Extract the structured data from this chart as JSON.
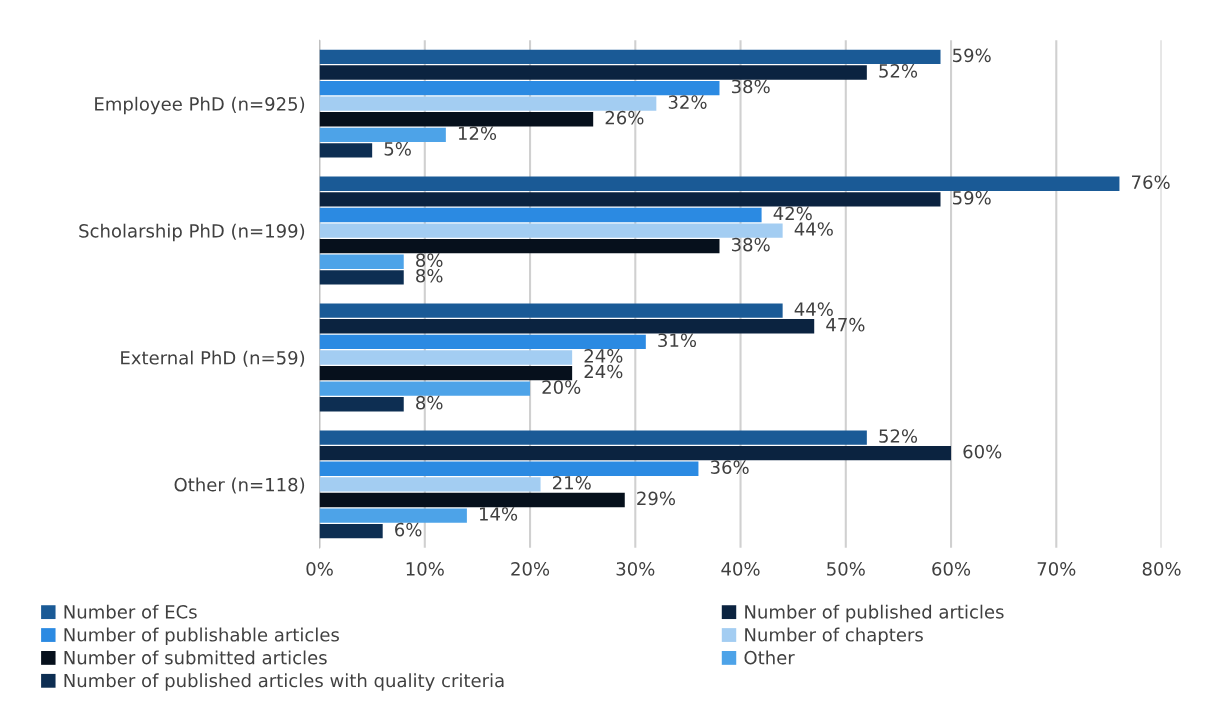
{
  "chart_data": {
    "type": "bar",
    "orientation": "horizontal",
    "categories": [
      "Employee PhD (n=925)",
      "Scholarship PhD (n=199)",
      "External PhD (n=59)",
      "Other (n=118)"
    ],
    "series": [
      {
        "name": "Number of ECs",
        "color": "#1a5a96",
        "values": [
          59,
          76,
          44,
          52
        ],
        "value_labels": [
          "59%",
          "76%",
          "44%",
          "52%"
        ]
      },
      {
        "name": "Number of published articles",
        "color": "#0b2340",
        "values": [
          52,
          59,
          47,
          60
        ],
        "value_labels": [
          "52%",
          "59%",
          "47%",
          "60%"
        ]
      },
      {
        "name": "Number of publishable articles",
        "color": "#2b8ae2",
        "values": [
          38,
          42,
          31,
          36
        ],
        "value_labels": [
          "38%",
          "42%",
          "31%",
          "36%"
        ]
      },
      {
        "name": "Number of chapters",
        "color": "#a3cdf2",
        "values": [
          32,
          44,
          24,
          21
        ],
        "value_labels": [
          "32%",
          "44%",
          "24%",
          "21%"
        ]
      },
      {
        "name": "Number of submitted articles",
        "color": "#06101c",
        "values": [
          26,
          38,
          24,
          29
        ],
        "value_labels": [
          "26%",
          "38%",
          "24%",
          "29%"
        ]
      },
      {
        "name": "Other",
        "color": "#4da3e8",
        "values": [
          12,
          8,
          20,
          14
        ],
        "value_labels": [
          "12%",
          "8%",
          "20%",
          "14%"
        ]
      },
      {
        "name": "Number of published articles with quality criteria",
        "color": "#0d2e52",
        "values": [
          5,
          8,
          8,
          6
        ],
        "value_labels": [
          "5%",
          "8%",
          "8%",
          "6%"
        ]
      }
    ],
    "xlim": [
      0,
      80
    ],
    "xticks": [
      {
        "value": 0,
        "label": "0%"
      },
      {
        "value": 10,
        "label": "10%"
      },
      {
        "value": 20,
        "label": "20%"
      },
      {
        "value": 30,
        "label": "30%"
      },
      {
        "value": 40,
        "label": "40%"
      },
      {
        "value": 50,
        "label": "50%"
      },
      {
        "value": 60,
        "label": "60%"
      },
      {
        "value": 70,
        "label": "70%"
      },
      {
        "value": 80,
        "label": "80%"
      }
    ],
    "grid": "x",
    "legend": "bottom"
  }
}
